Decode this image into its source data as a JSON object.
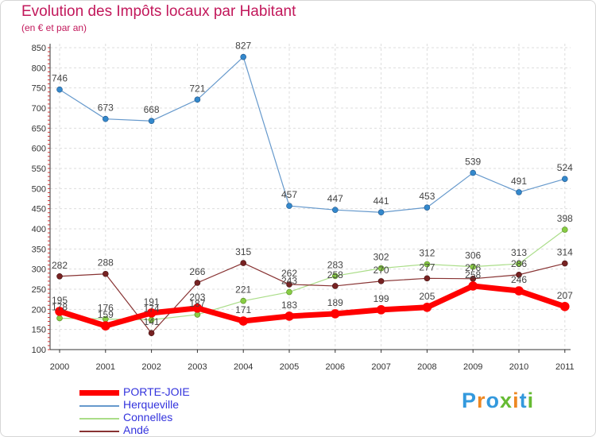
{
  "title": "Evolution des Impôts locaux par Habitant",
  "subtitle": "(en € et par an)",
  "logo_text": "Proxiti",
  "chart_data": {
    "type": "line",
    "title": "Evolution des Impôts locaux par Habitant",
    "subtitle": "(en € et par an)",
    "xlabel": "",
    "ylabel": "",
    "categories": [
      "2000",
      "2001",
      "2002",
      "2003",
      "2004",
      "2005",
      "2006",
      "2007",
      "2008",
      "2009",
      "2010",
      "2011"
    ],
    "ylim": [
      100,
      850
    ],
    "yticks": [
      100,
      150,
      200,
      250,
      300,
      350,
      400,
      450,
      500,
      550,
      600,
      650,
      700,
      750,
      800,
      850
    ],
    "grid": true,
    "legend_position": "bottom-left",
    "series": [
      {
        "name": "PORTE-JOIE",
        "color": "#ff0000",
        "values": [
          195,
          159,
          191,
          203,
          171,
          183,
          189,
          199,
          205,
          258,
          246,
          207
        ]
      },
      {
        "name": "Herqueville",
        "color": "#6699cc",
        "values": [
          746,
          673,
          668,
          721,
          827,
          457,
          447,
          441,
          453,
          539,
          491,
          524
        ]
      },
      {
        "name": "Connelles",
        "color": "#99dd77",
        "values": [
          178,
          176,
          174,
          187,
          221,
          243,
          283,
          302,
          312,
          306,
          313,
          398
        ]
      },
      {
        "name": "Andé",
        "color": "#772222",
        "values": [
          282,
          288,
          141,
          266,
          315,
          262,
          258,
          270,
          277,
          276,
          286,
          314
        ]
      }
    ]
  }
}
